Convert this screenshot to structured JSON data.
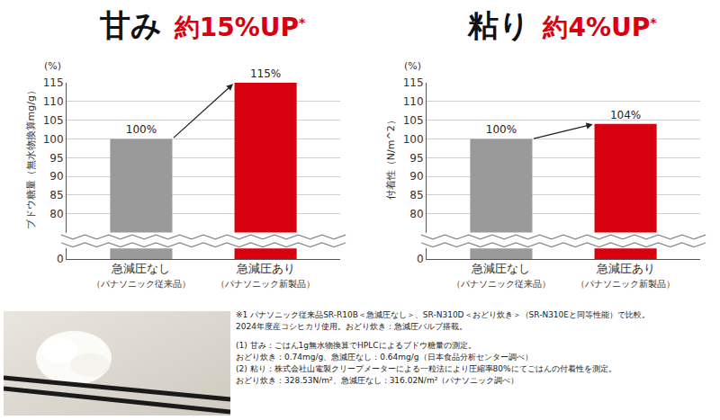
{
  "chart_data": [
    {
      "type": "bar",
      "title": "甘み",
      "subtitle": "約15%UP*",
      "ylabel": "ブドウ糖量（無水物換算mg/g）",
      "annotations": [
        "(%)"
      ],
      "categories": [
        "急減圧なし\n（パナソニック従来品）",
        "急減圧あり\n（パナソニック新製品）"
      ],
      "values": [
        100,
        115
      ],
      "value_labels": [
        "100%",
        "115%"
      ],
      "colors": [
        "#9a9a9a",
        "#d7000f"
      ],
      "ylim": [
        0,
        115
      ],
      "yticks": [
        0,
        80,
        85,
        90,
        95,
        100,
        105,
        110,
        115
      ],
      "grid": true,
      "data_labels": true
    },
    {
      "type": "bar",
      "title": "粘り",
      "subtitle": "約4%UP*",
      "ylabel": "付着性（N/m^2）",
      "annotations": [
        "(%)"
      ],
      "categories": [
        "急減圧なし\n（パナソニック従来品）",
        "急減圧あり\n（パナソニック新製品）"
      ],
      "values": [
        100,
        104
      ],
      "value_labels": [
        "100%",
        "104%"
      ],
      "colors": [
        "#9a9a9a",
        "#d7000f"
      ],
      "ylim": [
        0,
        115
      ],
      "yticks": [
        0,
        80,
        85,
        90,
        95,
        100,
        105,
        110,
        115
      ],
      "grid": true,
      "data_labels": true
    }
  ],
  "notes": [
    "※1 パナソニック従来品SR-R10B＜急減圧なし＞、SR-N310D＜おどり炊き＞（SR-N310Eと同等性能）で比較。",
    "2024年度産コシヒカリ使用。おどり炊き：急減圧バルブ搭載。",
    "(1) 甘み：ごはん1g無水物換算でHPLCによるブドウ糖量の測定。",
    "おどり炊き：0.74mg/g、急減圧なし：0.64mg/g（日本食品分析センター調べ）",
    "(2) 粘り：株式会社山電製クリープメーターによる一粒法により圧縮率80%にてごはんの付着性を測定。",
    "おどり炊き：328.53N/m²、急減圧なし：316.02N/m²（パナソニック調べ）"
  ]
}
